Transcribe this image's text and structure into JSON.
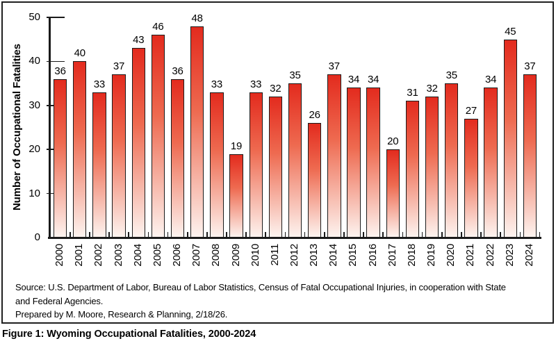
{
  "chart_data": {
    "type": "bar",
    "title": "",
    "ylabel": "Number of Occupational Fatalities",
    "xlabel": "",
    "ylim": [
      0,
      50
    ],
    "yticks": [
      0,
      10,
      20,
      30,
      40,
      50
    ],
    "grid": false,
    "legend": false,
    "categories": [
      "2000",
      "2001",
      "2002",
      "2003",
      "2004",
      "2005",
      "2006",
      "2007",
      "2008",
      "2009",
      "2010",
      "2011",
      "2012",
      "2013",
      "2014",
      "2015",
      "2016",
      "2017",
      "2018",
      "2019",
      "2020",
      "2021",
      "2022",
      "2023",
      "2024"
    ],
    "values": [
      36,
      40,
      33,
      37,
      43,
      46,
      36,
      48,
      33,
      19,
      33,
      32,
      35,
      26,
      37,
      34,
      34,
      20,
      31,
      32,
      35,
      27,
      34,
      45,
      37
    ],
    "data_labels_shown": true,
    "colors": {
      "bar_gradient_top": "#e32b1e",
      "bar_gradient_mid": "#ee6a50",
      "bar_gradient_bottom": "#fdf3ef",
      "bar_outline": "#1a1a1a",
      "axis": "#1a1a1a",
      "text": "#000000"
    }
  },
  "footer": {
    "line1": "Source: U.S. Department of Labor, Bureau of Labor Statistics, Census of Fatal Occupational Injuries, in cooperation with State",
    "line2": "and Federal Agencies.",
    "line3": "Prepared by M. Moore, Research & Planning, 2/18/26."
  },
  "caption": "Figure 1: Wyoming Occupational Fatalities, 2000-2024"
}
